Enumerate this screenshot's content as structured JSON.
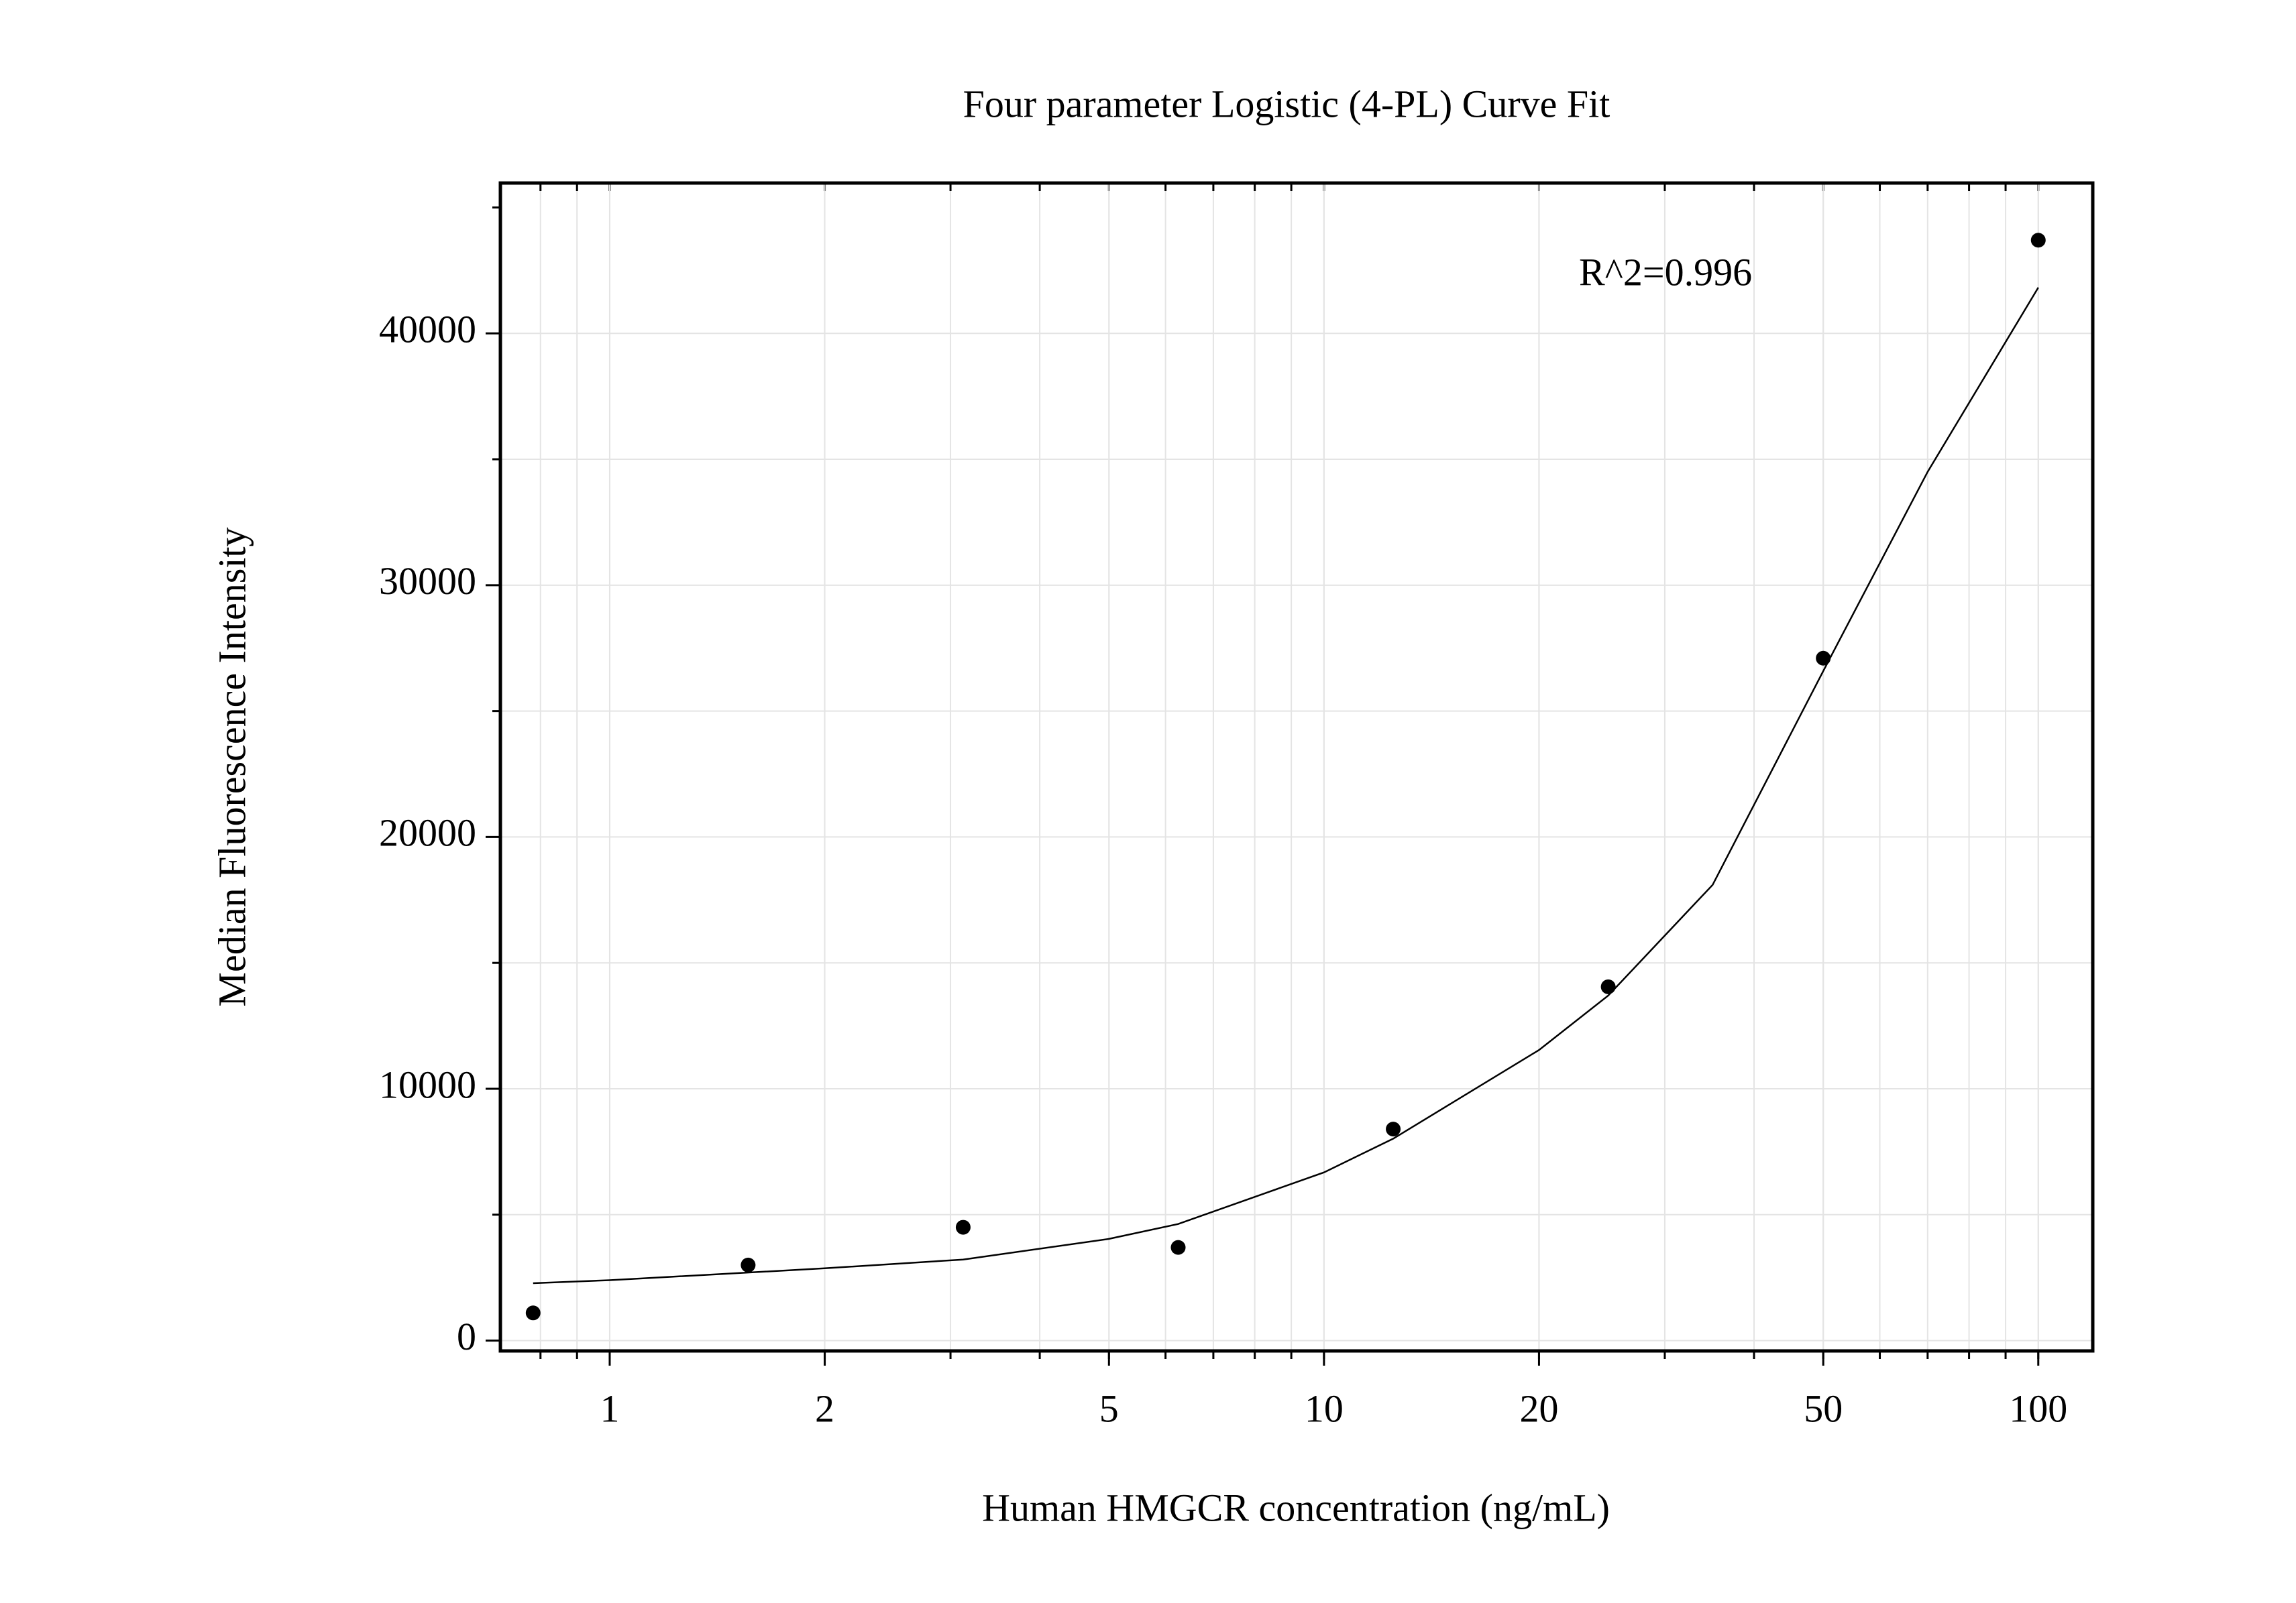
{
  "chart_data": {
    "type": "scatter",
    "title": "Four parameter Logistic (4-PL) Curve Fit",
    "x_label": "Human HMGCR concentration (ng/mL)",
    "y_label": "Median Fluorescence Intensity",
    "annotation": "R^2=0.996",
    "x_scale": "log",
    "grid": true,
    "series": [
      {
        "color": "#000000",
        "x": [
          0.78125,
          1.5625,
          3.125,
          6.25,
          12.5,
          25,
          50,
          100
        ],
        "values": [
          1100,
          3000,
          4500,
          3700,
          8400,
          14050,
          27100,
          43700
        ]
      }
    ],
    "fit": {
      "color": "#000000",
      "x": [
        0.78125,
        1,
        2,
        3.125,
        5,
        6.25,
        10,
        12.5,
        20,
        25,
        35,
        50,
        70,
        100
      ],
      "values": [
        2280,
        2400,
        2870,
        3220,
        4040,
        4630,
        6680,
        8020,
        11540,
        13700,
        18100,
        26590,
        34500,
        41820
      ]
    },
    "xlim": [
      0.703,
      119.2
    ],
    "xticks": [
      1,
      2,
      5,
      10,
      20,
      50,
      100
    ],
    "ylim": [
      -410,
      45970
    ],
    "yticks": [
      0,
      10000,
      20000,
      30000,
      40000
    ]
  }
}
